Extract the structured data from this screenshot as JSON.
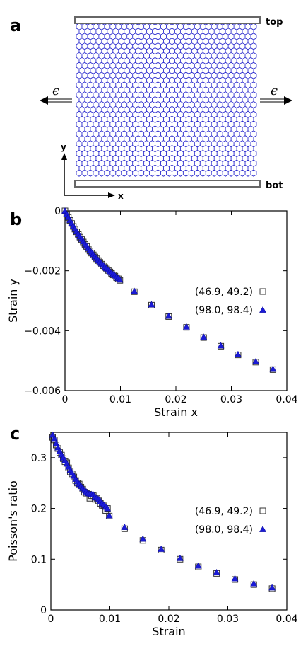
{
  "panels": {
    "a": {
      "label": "a",
      "top_label": "top",
      "bot_label": "bot",
      "left_arrow_label": "ϵ",
      "right_arrow_label": "ϵ",
      "y_axis_label": "y",
      "x_axis_label": "x"
    },
    "b": {
      "label": "b"
    },
    "c": {
      "label": "c"
    }
  },
  "colors": {
    "lattice": "#2f2fcf",
    "triangle_fill": "#1a1ad6",
    "square_stroke": "#333333",
    "bar_stroke": "#666666"
  },
  "chart_data": [
    {
      "id": "b",
      "type": "scatter",
      "xlabel": "Strain x",
      "ylabel": "Strain y",
      "xlim": [
        0,
        0.04
      ],
      "ylim": [
        -0.006,
        0
      ],
      "xticks": [
        0,
        0.01,
        0.02,
        0.03,
        0.04
      ],
      "xtick_labels": [
        "0",
        "0.01",
        "0.02",
        "0.03",
        "0.04"
      ],
      "yticks": [
        0,
        -0.002,
        -0.004,
        -0.006
      ],
      "ytick_labels": [
        "0",
        "−0.002",
        "−0.004",
        "−0.006"
      ],
      "legend_position": "right",
      "series": [
        {
          "name": "(46.9, 49.2)",
          "marker": "open-square",
          "x": [
            0.0,
            0.0003,
            0.0006,
            0.0009,
            0.0012,
            0.0015,
            0.0018,
            0.0021,
            0.0024,
            0.0027,
            0.003,
            0.0033,
            0.0036,
            0.0039,
            0.0042,
            0.0045,
            0.0048,
            0.0051,
            0.0054,
            0.0057,
            0.006,
            0.0063,
            0.0066,
            0.0069,
            0.0072,
            0.0075,
            0.0078,
            0.0081,
            0.0084,
            0.0087,
            0.009,
            0.0093,
            0.0096,
            0.0099,
            0.0125,
            0.0156,
            0.0187,
            0.0219,
            0.025,
            0.0281,
            0.0312,
            0.0344,
            0.0375
          ],
          "y": [
            0.0,
            -0.00011,
            -0.00022,
            -0.00032,
            -0.00042,
            -0.00052,
            -0.00061,
            -0.0007,
            -0.00079,
            -0.00088,
            -0.00096,
            -0.00104,
            -0.00112,
            -0.00119,
            -0.00127,
            -0.00134,
            -0.00141,
            -0.00147,
            -0.00154,
            -0.0016,
            -0.00166,
            -0.00172,
            -0.00178,
            -0.00183,
            -0.00189,
            -0.00194,
            -0.00199,
            -0.00204,
            -0.00209,
            -0.00214,
            -0.00218,
            -0.00223,
            -0.00227,
            -0.00232,
            -0.0027,
            -0.00315,
            -0.00353,
            -0.00389,
            -0.00423,
            -0.00452,
            -0.00481,
            -0.00505,
            -0.0053
          ]
        },
        {
          "name": "(98.0, 98.4)",
          "marker": "filled-triangle",
          "x": [
            0.0,
            0.0003,
            0.0006,
            0.0009,
            0.0012,
            0.0015,
            0.0018,
            0.0021,
            0.0024,
            0.0027,
            0.003,
            0.0033,
            0.0036,
            0.0039,
            0.0042,
            0.0045,
            0.0048,
            0.0051,
            0.0054,
            0.0057,
            0.006,
            0.0063,
            0.0066,
            0.0069,
            0.0072,
            0.0075,
            0.0078,
            0.0081,
            0.0084,
            0.0087,
            0.009,
            0.0093,
            0.0096,
            0.0099,
            0.0125,
            0.0156,
            0.0187,
            0.0219,
            0.025,
            0.0281,
            0.0312,
            0.0344,
            0.0375
          ],
          "y": [
            0.0,
            -0.00011,
            -0.00021,
            -0.00031,
            -0.00041,
            -0.00051,
            -0.0006,
            -0.00069,
            -0.00078,
            -0.00086,
            -0.00094,
            -0.00102,
            -0.0011,
            -0.00117,
            -0.00125,
            -0.00132,
            -0.00139,
            -0.00145,
            -0.00152,
            -0.00158,
            -0.00164,
            -0.0017,
            -0.00176,
            -0.00181,
            -0.00187,
            -0.00192,
            -0.00197,
            -0.00202,
            -0.00207,
            -0.00212,
            -0.00216,
            -0.00221,
            -0.00225,
            -0.0023,
            -0.00268,
            -0.00313,
            -0.00351,
            -0.00387,
            -0.00421,
            -0.0045,
            -0.00479,
            -0.00503,
            -0.00528
          ]
        }
      ]
    },
    {
      "id": "c",
      "type": "scatter",
      "xlabel": "Strain",
      "ylabel": "Poisson's ratio",
      "xlim": [
        0,
        0.04
      ],
      "ylim": [
        0,
        0.35
      ],
      "xticks": [
        0,
        0.01,
        0.02,
        0.03,
        0.04
      ],
      "xtick_labels": [
        "0",
        "0.01",
        "0.02",
        "0.03",
        "0.04"
      ],
      "yticks": [
        0,
        0.1,
        0.2,
        0.3
      ],
      "ytick_labels": [
        "0",
        "0.1",
        "0.2",
        "0.3"
      ],
      "legend_position": "right",
      "series": [
        {
          "name": "(46.9, 49.2)",
          "marker": "open-square",
          "x": [
            0.0003,
            0.0006,
            0.0009,
            0.0012,
            0.0015,
            0.0018,
            0.0021,
            0.0024,
            0.0027,
            0.003,
            0.0033,
            0.0036,
            0.0039,
            0.0042,
            0.0045,
            0.0048,
            0.0051,
            0.0054,
            0.0057,
            0.006,
            0.0063,
            0.0066,
            0.0069,
            0.0072,
            0.0075,
            0.0078,
            0.0081,
            0.0084,
            0.0087,
            0.009,
            0.0093,
            0.0096,
            0.0099,
            0.0125,
            0.0156,
            0.0187,
            0.0219,
            0.025,
            0.0281,
            0.0312,
            0.0344,
            0.0375
          ],
          "y": [
            0.34,
            0.335,
            0.325,
            0.318,
            0.31,
            0.305,
            0.298,
            0.292,
            0.29,
            0.28,
            0.272,
            0.268,
            0.262,
            0.255,
            0.25,
            0.248,
            0.242,
            0.238,
            0.232,
            0.23,
            0.228,
            0.22,
            0.225,
            0.225,
            0.218,
            0.22,
            0.215,
            0.21,
            0.206,
            0.205,
            0.196,
            0.2,
            0.185,
            0.16,
            0.137,
            0.118,
            0.1,
            0.085,
            0.072,
            0.06,
            0.05,
            0.042
          ]
        },
        {
          "name": "(98.0, 98.4)",
          "marker": "filled-triangle",
          "x": [
            0.0003,
            0.0006,
            0.0009,
            0.0012,
            0.0015,
            0.0018,
            0.0021,
            0.0024,
            0.0027,
            0.003,
            0.0033,
            0.0036,
            0.0039,
            0.0042,
            0.0045,
            0.0048,
            0.0051,
            0.0054,
            0.0057,
            0.006,
            0.0063,
            0.0066,
            0.0069,
            0.0072,
            0.0075,
            0.0078,
            0.0081,
            0.0084,
            0.0087,
            0.009,
            0.0093,
            0.0096,
            0.0099,
            0.0125,
            0.0156,
            0.0187,
            0.0219,
            0.025,
            0.0281,
            0.0312,
            0.0344,
            0.0375
          ],
          "y": [
            0.345,
            0.338,
            0.328,
            0.32,
            0.313,
            0.306,
            0.3,
            0.295,
            0.288,
            0.282,
            0.276,
            0.27,
            0.264,
            0.258,
            0.253,
            0.248,
            0.244,
            0.24,
            0.236,
            0.233,
            0.23,
            0.229,
            0.228,
            0.227,
            0.223,
            0.221,
            0.218,
            0.214,
            0.21,
            0.207,
            0.203,
            0.2,
            0.186,
            0.163,
            0.14,
            0.12,
            0.102,
            0.087,
            0.074,
            0.062,
            0.052,
            0.044
          ]
        }
      ]
    }
  ]
}
